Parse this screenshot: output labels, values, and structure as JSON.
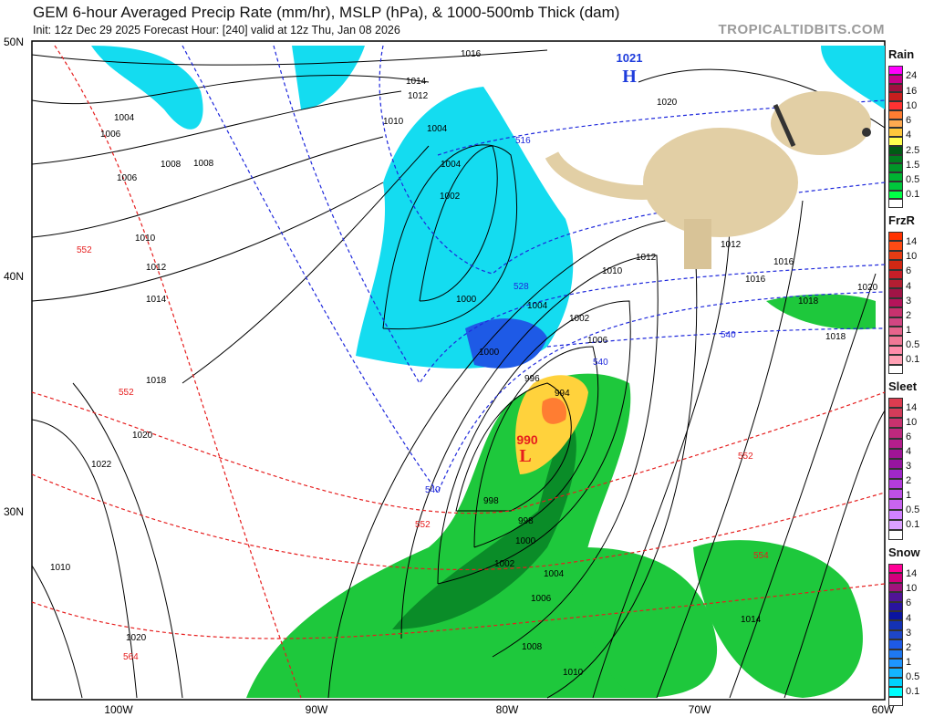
{
  "header": {
    "title": "GEM 6-hour Averaged Precip Rate (mm/hr), MSLP (hPa), & 1000-500mb Thick (dam)",
    "subtitle": "Init: 12z Dec 29 2025   Forecast Hour: [240]   valid at 12z Thu, Jan 08 2026",
    "brand": "TROPICALTIDBITS.COM"
  },
  "axes": {
    "lon_ticks": [
      "100W",
      "90W",
      "80W",
      "70W",
      "60W"
    ],
    "lat_ticks": [
      "50N",
      "40N",
      "30N"
    ]
  },
  "pressure_centers": [
    {
      "type": "H",
      "value": "1021"
    },
    {
      "type": "L",
      "value": "990"
    }
  ],
  "isobar_labels": [
    "1016",
    "1014",
    "1012",
    "1010",
    "1008",
    "1006",
    "1004",
    "1004",
    "1002",
    "1000",
    "1000",
    "998",
    "996",
    "994",
    "1002",
    "1004",
    "1006",
    "1008",
    "1010",
    "1012",
    "1016",
    "1018",
    "1020",
    "1022",
    "1018",
    "1020",
    "1014",
    "1010",
    "1012",
    "1020",
    "1016",
    "1018",
    "1020",
    "1002",
    "1004",
    "1006",
    "998",
    "1000",
    "1008",
    "1010",
    "1004",
    "1006",
    "1010",
    "1012",
    "1014"
  ],
  "thickness_labels": [
    "552",
    "552",
    "552",
    "564",
    "540",
    "540",
    "528",
    "516",
    "540",
    "552",
    "554"
  ],
  "legend": [
    {
      "title": "Rain",
      "colors": [
        "#ff00ff",
        "#c8008c",
        "#a01040",
        "#c81e1e",
        "#ff3232",
        "#ff7d32",
        "#ffaa50",
        "#ffc83c",
        "#ffff50",
        "#005a14",
        "#007d1e",
        "#009628",
        "#00b432",
        "#00c83c",
        "#00ff46",
        "#ffffff"
      ],
      "labels": [
        "24",
        "16",
        "10",
        "6",
        "4",
        "2.5",
        "1.5",
        "0.5",
        "0.1"
      ]
    },
    {
      "title": "FrzR",
      "colors": [
        "#ff3200",
        "#ff4b14",
        "#e63c14",
        "#d22814",
        "#c81e28",
        "#b41e32",
        "#a01446",
        "#b4145a",
        "#c8326e",
        "#d24682",
        "#e6648c",
        "#f07896",
        "#ff8caa",
        "#ffa0b4",
        "#ffffff"
      ],
      "labels": [
        "14",
        "10",
        "6",
        "4",
        "3",
        "2",
        "1",
        "0.5",
        "0.1"
      ]
    },
    {
      "title": "Sleet",
      "colors": [
        "#dc3c50",
        "#d23c5a",
        "#c8326e",
        "#be287d",
        "#b41e8c",
        "#a01496",
        "#9614a0",
        "#a028c8",
        "#b43cdc",
        "#be50e6",
        "#c864f0",
        "#d282ff",
        "#dca0ff",
        "#ffffff"
      ],
      "labels": [
        "14",
        "10",
        "6",
        "4",
        "3",
        "2",
        "1",
        "0.5",
        "0.1"
      ]
    },
    {
      "title": "Snow",
      "colors": [
        "#ff0096",
        "#d2007d",
        "#a0147d",
        "#501496",
        "#2814a0",
        "#0a14a0",
        "#1432b4",
        "#1e46c8",
        "#1e5ae6",
        "#1e78f0",
        "#1e96ff",
        "#14b4ff",
        "#00d2ff",
        "#00ffff",
        "#ffffff"
      ],
      "labels": [
        "14",
        "10",
        "6",
        "4",
        "3",
        "2",
        "1",
        "0.5",
        "0.1"
      ]
    }
  ],
  "colors": {
    "isobar": "#000000",
    "thick_cold": "#1e28dc",
    "thick_warm": "#e61e1e",
    "dog": "#e2cfa5"
  }
}
